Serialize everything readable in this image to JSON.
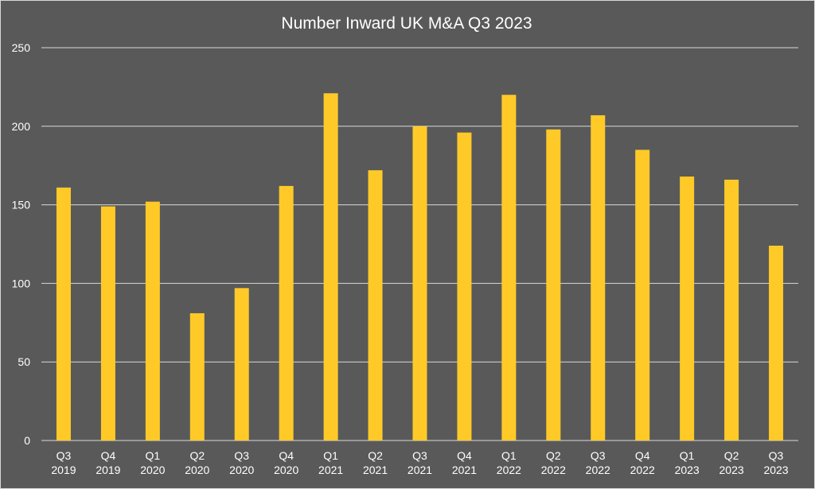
{
  "chart_data": {
    "type": "bar",
    "title": "Number Inward UK M&A Q3 2023",
    "xlabel": "",
    "ylabel": "",
    "ylim": [
      0,
      250
    ],
    "yticks": [
      0,
      50,
      100,
      150,
      200,
      250
    ],
    "grid": true,
    "legend": "none",
    "categories": [
      [
        "Q3",
        "2019"
      ],
      [
        "Q4",
        "2019"
      ],
      [
        "Q1",
        "2020"
      ],
      [
        "Q2",
        "2020"
      ],
      [
        "Q3",
        "2020"
      ],
      [
        "Q4",
        "2020"
      ],
      [
        "Q1",
        "2021"
      ],
      [
        "Q2",
        "2021"
      ],
      [
        "Q3",
        "2021"
      ],
      [
        "Q4",
        "2021"
      ],
      [
        "Q1",
        "2022"
      ],
      [
        "Q2",
        "2022"
      ],
      [
        "Q3",
        "2022"
      ],
      [
        "Q4",
        "2022"
      ],
      [
        "Q1",
        "2023"
      ],
      [
        "Q2",
        "2023"
      ],
      [
        "Q3",
        "2023"
      ]
    ],
    "values": [
      161,
      149,
      152,
      81,
      97,
      162,
      221,
      172,
      200,
      196,
      220,
      198,
      207,
      185,
      168,
      166,
      124
    ],
    "colors": {
      "background": "#595959",
      "bar": "#FFCA28",
      "grid": "#d9d9d9",
      "text": "#ffffff"
    }
  }
}
